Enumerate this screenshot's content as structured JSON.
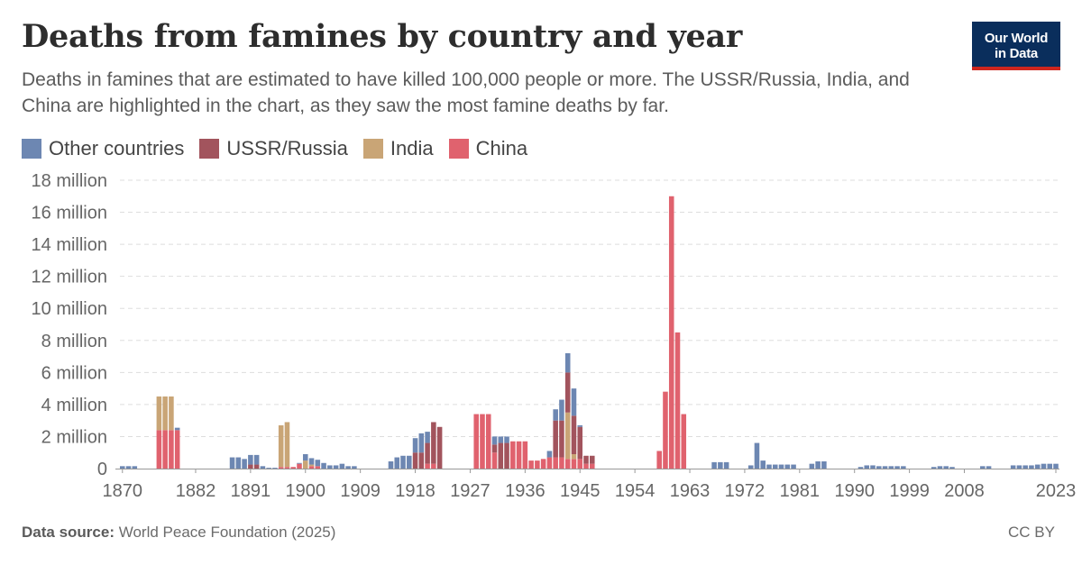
{
  "title": "Deaths from famines by country and year",
  "subtitle": "Deaths in famines that are estimated to have killed 100,000 people or more. The USSR/Russia, India, and China are highlighted in the chart, as they saw the most famine deaths by far.",
  "logo": {
    "line1": "Our World",
    "line2": "in Data"
  },
  "legend": [
    {
      "label": "Other countries",
      "color": "#6d87b2"
    },
    {
      "label": "USSR/Russia",
      "color": "#a2545d"
    },
    {
      "label": "India",
      "color": "#c9a576"
    },
    {
      "label": "China",
      "color": "#e0626e"
    }
  ],
  "footer": {
    "source_label": "Data source:",
    "source_text": "World Peace Foundation (2025)",
    "license": "CC BY"
  },
  "chart_data": {
    "type": "bar",
    "stacked": true,
    "x_range": [
      1870,
      2023
    ],
    "x_ticks": [
      1870,
      1882,
      1891,
      1900,
      1909,
      1918,
      1927,
      1936,
      1945,
      1954,
      1963,
      1972,
      1981,
      1990,
      1999,
      2008,
      2023
    ],
    "y_range": [
      0,
      18000000
    ],
    "y_ticks": [
      {
        "value": 0,
        "label": "0"
      },
      {
        "value": 2000000,
        "label": "2 million"
      },
      {
        "value": 4000000,
        "label": "4 million"
      },
      {
        "value": 6000000,
        "label": "6 million"
      },
      {
        "value": 8000000,
        "label": "8 million"
      },
      {
        "value": 10000000,
        "label": "10 million"
      },
      {
        "value": 12000000,
        "label": "12 million"
      },
      {
        "value": 14000000,
        "label": "14 million"
      },
      {
        "value": 16000000,
        "label": "16 million"
      },
      {
        "value": 18000000,
        "label": "18 million"
      }
    ],
    "gridlines": true,
    "legend_position": "top-left",
    "series": [
      {
        "name": "China",
        "color": "#e0626e",
        "points": [
          [
            1876,
            2400000
          ],
          [
            1877,
            2400000
          ],
          [
            1878,
            2400000
          ],
          [
            1879,
            2400000
          ],
          [
            1896,
            100000
          ],
          [
            1897,
            100000
          ],
          [
            1898,
            100000
          ],
          [
            1899,
            300000
          ],
          [
            1901,
            150000
          ],
          [
            1902,
            150000
          ],
          [
            1920,
            300000
          ],
          [
            1921,
            300000
          ],
          [
            1928,
            3400000
          ],
          [
            1929,
            3400000
          ],
          [
            1930,
            3400000
          ],
          [
            1931,
            1000000
          ],
          [
            1934,
            1700000
          ],
          [
            1935,
            1700000
          ],
          [
            1936,
            1700000
          ],
          [
            1937,
            500000
          ],
          [
            1938,
            500000
          ],
          [
            1939,
            600000
          ],
          [
            1940,
            700000
          ],
          [
            1941,
            700000
          ],
          [
            1942,
            700000
          ],
          [
            1943,
            600000
          ],
          [
            1944,
            600000
          ],
          [
            1945,
            600000
          ],
          [
            1946,
            300000
          ],
          [
            1947,
            300000
          ],
          [
            1958,
            1100000
          ],
          [
            1959,
            4800000
          ],
          [
            1960,
            17000000
          ],
          [
            1961,
            8500000
          ],
          [
            1962,
            3400000
          ]
        ]
      },
      {
        "name": "India",
        "color": "#c9a576",
        "points": [
          [
            1876,
            2100000
          ],
          [
            1877,
            2100000
          ],
          [
            1878,
            2100000
          ],
          [
            1896,
            2600000
          ],
          [
            1897,
            2800000
          ],
          [
            1900,
            500000
          ],
          [
            1901,
            100000
          ],
          [
            1943,
            2900000
          ],
          [
            1944,
            300000
          ]
        ]
      },
      {
        "name": "USSR/Russia",
        "color": "#a2545d",
        "points": [
          [
            1891,
            250000
          ],
          [
            1892,
            250000
          ],
          [
            1918,
            1000000
          ],
          [
            1919,
            1000000
          ],
          [
            1920,
            1300000
          ],
          [
            1921,
            2600000
          ],
          [
            1922,
            2600000
          ],
          [
            1931,
            500000
          ],
          [
            1932,
            1600000
          ],
          [
            1933,
            1600000
          ],
          [
            1941,
            2300000
          ],
          [
            1942,
            2300000
          ],
          [
            1943,
            2500000
          ],
          [
            1944,
            2400000
          ],
          [
            1945,
            2000000
          ],
          [
            1946,
            500000
          ],
          [
            1947,
            500000
          ]
        ]
      },
      {
        "name": "Other countries",
        "color": "#6d87b2",
        "points": [
          [
            1870,
            150000
          ],
          [
            1871,
            150000
          ],
          [
            1872,
            150000
          ],
          [
            1879,
            150000
          ],
          [
            1888,
            700000
          ],
          [
            1889,
            700000
          ],
          [
            1890,
            600000
          ],
          [
            1891,
            600000
          ],
          [
            1892,
            600000
          ],
          [
            1893,
            150000
          ],
          [
            1894,
            50000
          ],
          [
            1895,
            50000
          ],
          [
            1899,
            50000
          ],
          [
            1900,
            400000
          ],
          [
            1901,
            400000
          ],
          [
            1902,
            400000
          ],
          [
            1903,
            350000
          ],
          [
            1904,
            200000
          ],
          [
            1905,
            200000
          ],
          [
            1906,
            300000
          ],
          [
            1907,
            150000
          ],
          [
            1908,
            150000
          ],
          [
            1914,
            450000
          ],
          [
            1915,
            700000
          ],
          [
            1916,
            800000
          ],
          [
            1917,
            800000
          ],
          [
            1918,
            900000
          ],
          [
            1919,
            1200000
          ],
          [
            1920,
            700000
          ],
          [
            1931,
            500000
          ],
          [
            1932,
            400000
          ],
          [
            1933,
            400000
          ],
          [
            1940,
            400000
          ],
          [
            1941,
            700000
          ],
          [
            1942,
            1300000
          ],
          [
            1943,
            1200000
          ],
          [
            1944,
            1700000
          ],
          [
            1945,
            100000
          ],
          [
            1958,
            0
          ],
          [
            1967,
            400000
          ],
          [
            1968,
            400000
          ],
          [
            1969,
            400000
          ],
          [
            1973,
            200000
          ],
          [
            1974,
            1600000
          ],
          [
            1975,
            500000
          ],
          [
            1976,
            250000
          ],
          [
            1977,
            250000
          ],
          [
            1978,
            250000
          ],
          [
            1979,
            250000
          ],
          [
            1980,
            250000
          ],
          [
            1983,
            300000
          ],
          [
            1984,
            450000
          ],
          [
            1985,
            450000
          ],
          [
            1991,
            100000
          ],
          [
            1992,
            200000
          ],
          [
            1993,
            200000
          ],
          [
            1994,
            150000
          ],
          [
            1995,
            150000
          ],
          [
            1996,
            150000
          ],
          [
            1997,
            150000
          ],
          [
            1998,
            150000
          ],
          [
            2003,
            100000
          ],
          [
            2004,
            150000
          ],
          [
            2005,
            150000
          ],
          [
            2006,
            100000
          ],
          [
            2011,
            150000
          ],
          [
            2012,
            150000
          ],
          [
            2016,
            200000
          ],
          [
            2017,
            200000
          ],
          [
            2018,
            200000
          ],
          [
            2019,
            200000
          ],
          [
            2020,
            250000
          ],
          [
            2021,
            300000
          ],
          [
            2022,
            300000
          ],
          [
            2023,
            300000
          ]
        ]
      }
    ]
  }
}
